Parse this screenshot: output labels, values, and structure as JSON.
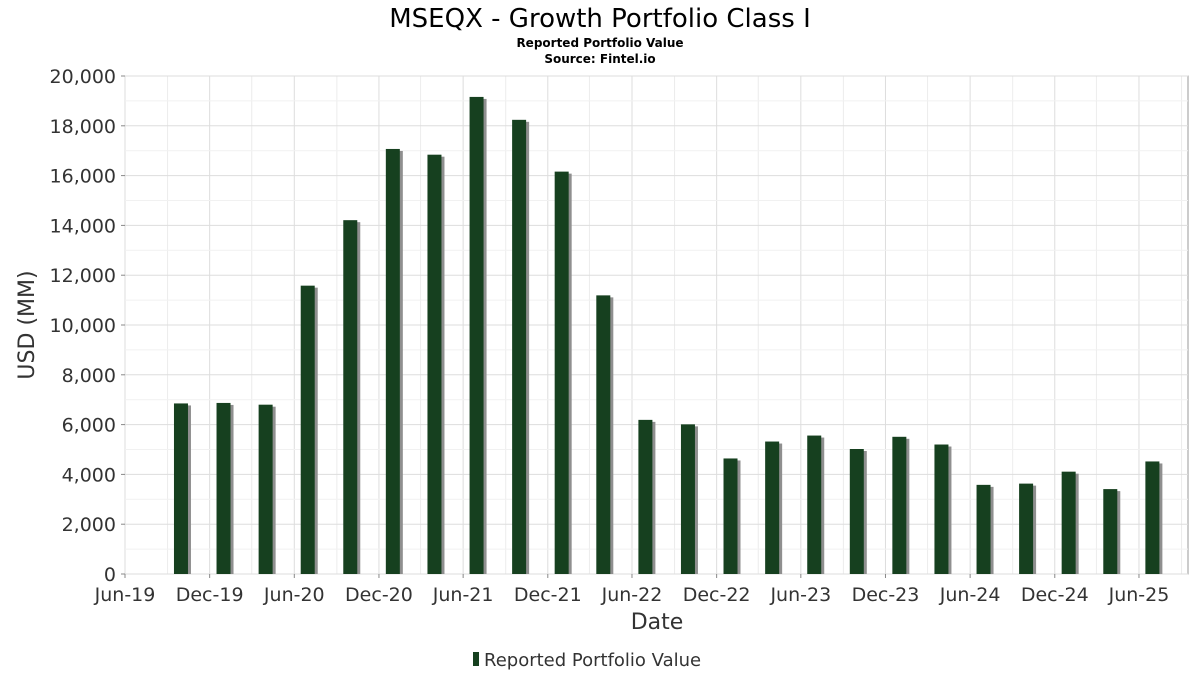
{
  "chart_data": {
    "type": "bar",
    "title": "MSEQX - Growth Portfolio Class I",
    "subtitle": "Reported Portfolio Value",
    "source": "Source: Fintel.io",
    "xlabel": "Date",
    "ylabel": "USD (MM)",
    "ylim": [
      0,
      20000
    ],
    "yticks": [
      "0",
      "2,000",
      "4,000",
      "6,000",
      "8,000",
      "10,000",
      "12,000",
      "14,000",
      "16,000",
      "18,000",
      "20,000"
    ],
    "xticks": [
      {
        "label": "Jun-19",
        "date": "2019-06-01"
      },
      {
        "label": "Dec-19",
        "date": "2019-12-01"
      },
      {
        "label": "Jun-20",
        "date": "2020-06-01"
      },
      {
        "label": "Dec-20",
        "date": "2020-12-01"
      },
      {
        "label": "Jun-21",
        "date": "2021-06-01"
      },
      {
        "label": "Dec-21",
        "date": "2021-12-01"
      },
      {
        "label": "Jun-22",
        "date": "2022-06-01"
      },
      {
        "label": "Dec-22",
        "date": "2022-12-01"
      },
      {
        "label": "Jun-23",
        "date": "2023-06-01"
      },
      {
        "label": "Dec-23",
        "date": "2023-12-01"
      },
      {
        "label": "Jun-24",
        "date": "2024-06-01"
      },
      {
        "label": "Dec-24",
        "date": "2024-12-01"
      },
      {
        "label": "Jun-25",
        "date": "2025-06-01"
      }
    ],
    "xlim": [
      "2019-06-01",
      "2025-09-15"
    ],
    "grid": true,
    "legend": "bottom-center",
    "series": [
      {
        "name": "Reported Portfolio Value",
        "color": "#16401f",
        "shadow_color": "#8f8f8f",
        "x": [
          "2019-09-30",
          "2019-12-31",
          "2020-03-31",
          "2020-06-30",
          "2020-09-30",
          "2020-12-31",
          "2021-03-31",
          "2021-06-30",
          "2021-09-30",
          "2021-12-31",
          "2022-03-31",
          "2022-06-30",
          "2022-09-30",
          "2022-12-31",
          "2023-03-31",
          "2023-06-30",
          "2023-09-30",
          "2023-12-31",
          "2024-03-31",
          "2024-06-30",
          "2024-09-30",
          "2024-12-31",
          "2025-03-31",
          "2025-06-30"
        ],
        "values": [
          6850,
          6870,
          6800,
          11580,
          14210,
          17070,
          16840,
          19160,
          18240,
          16160,
          11190,
          6190,
          6010,
          4640,
          5320,
          5560,
          5020,
          5510,
          5200,
          3580,
          3630,
          4110,
          3410,
          4520
        ]
      }
    ]
  }
}
